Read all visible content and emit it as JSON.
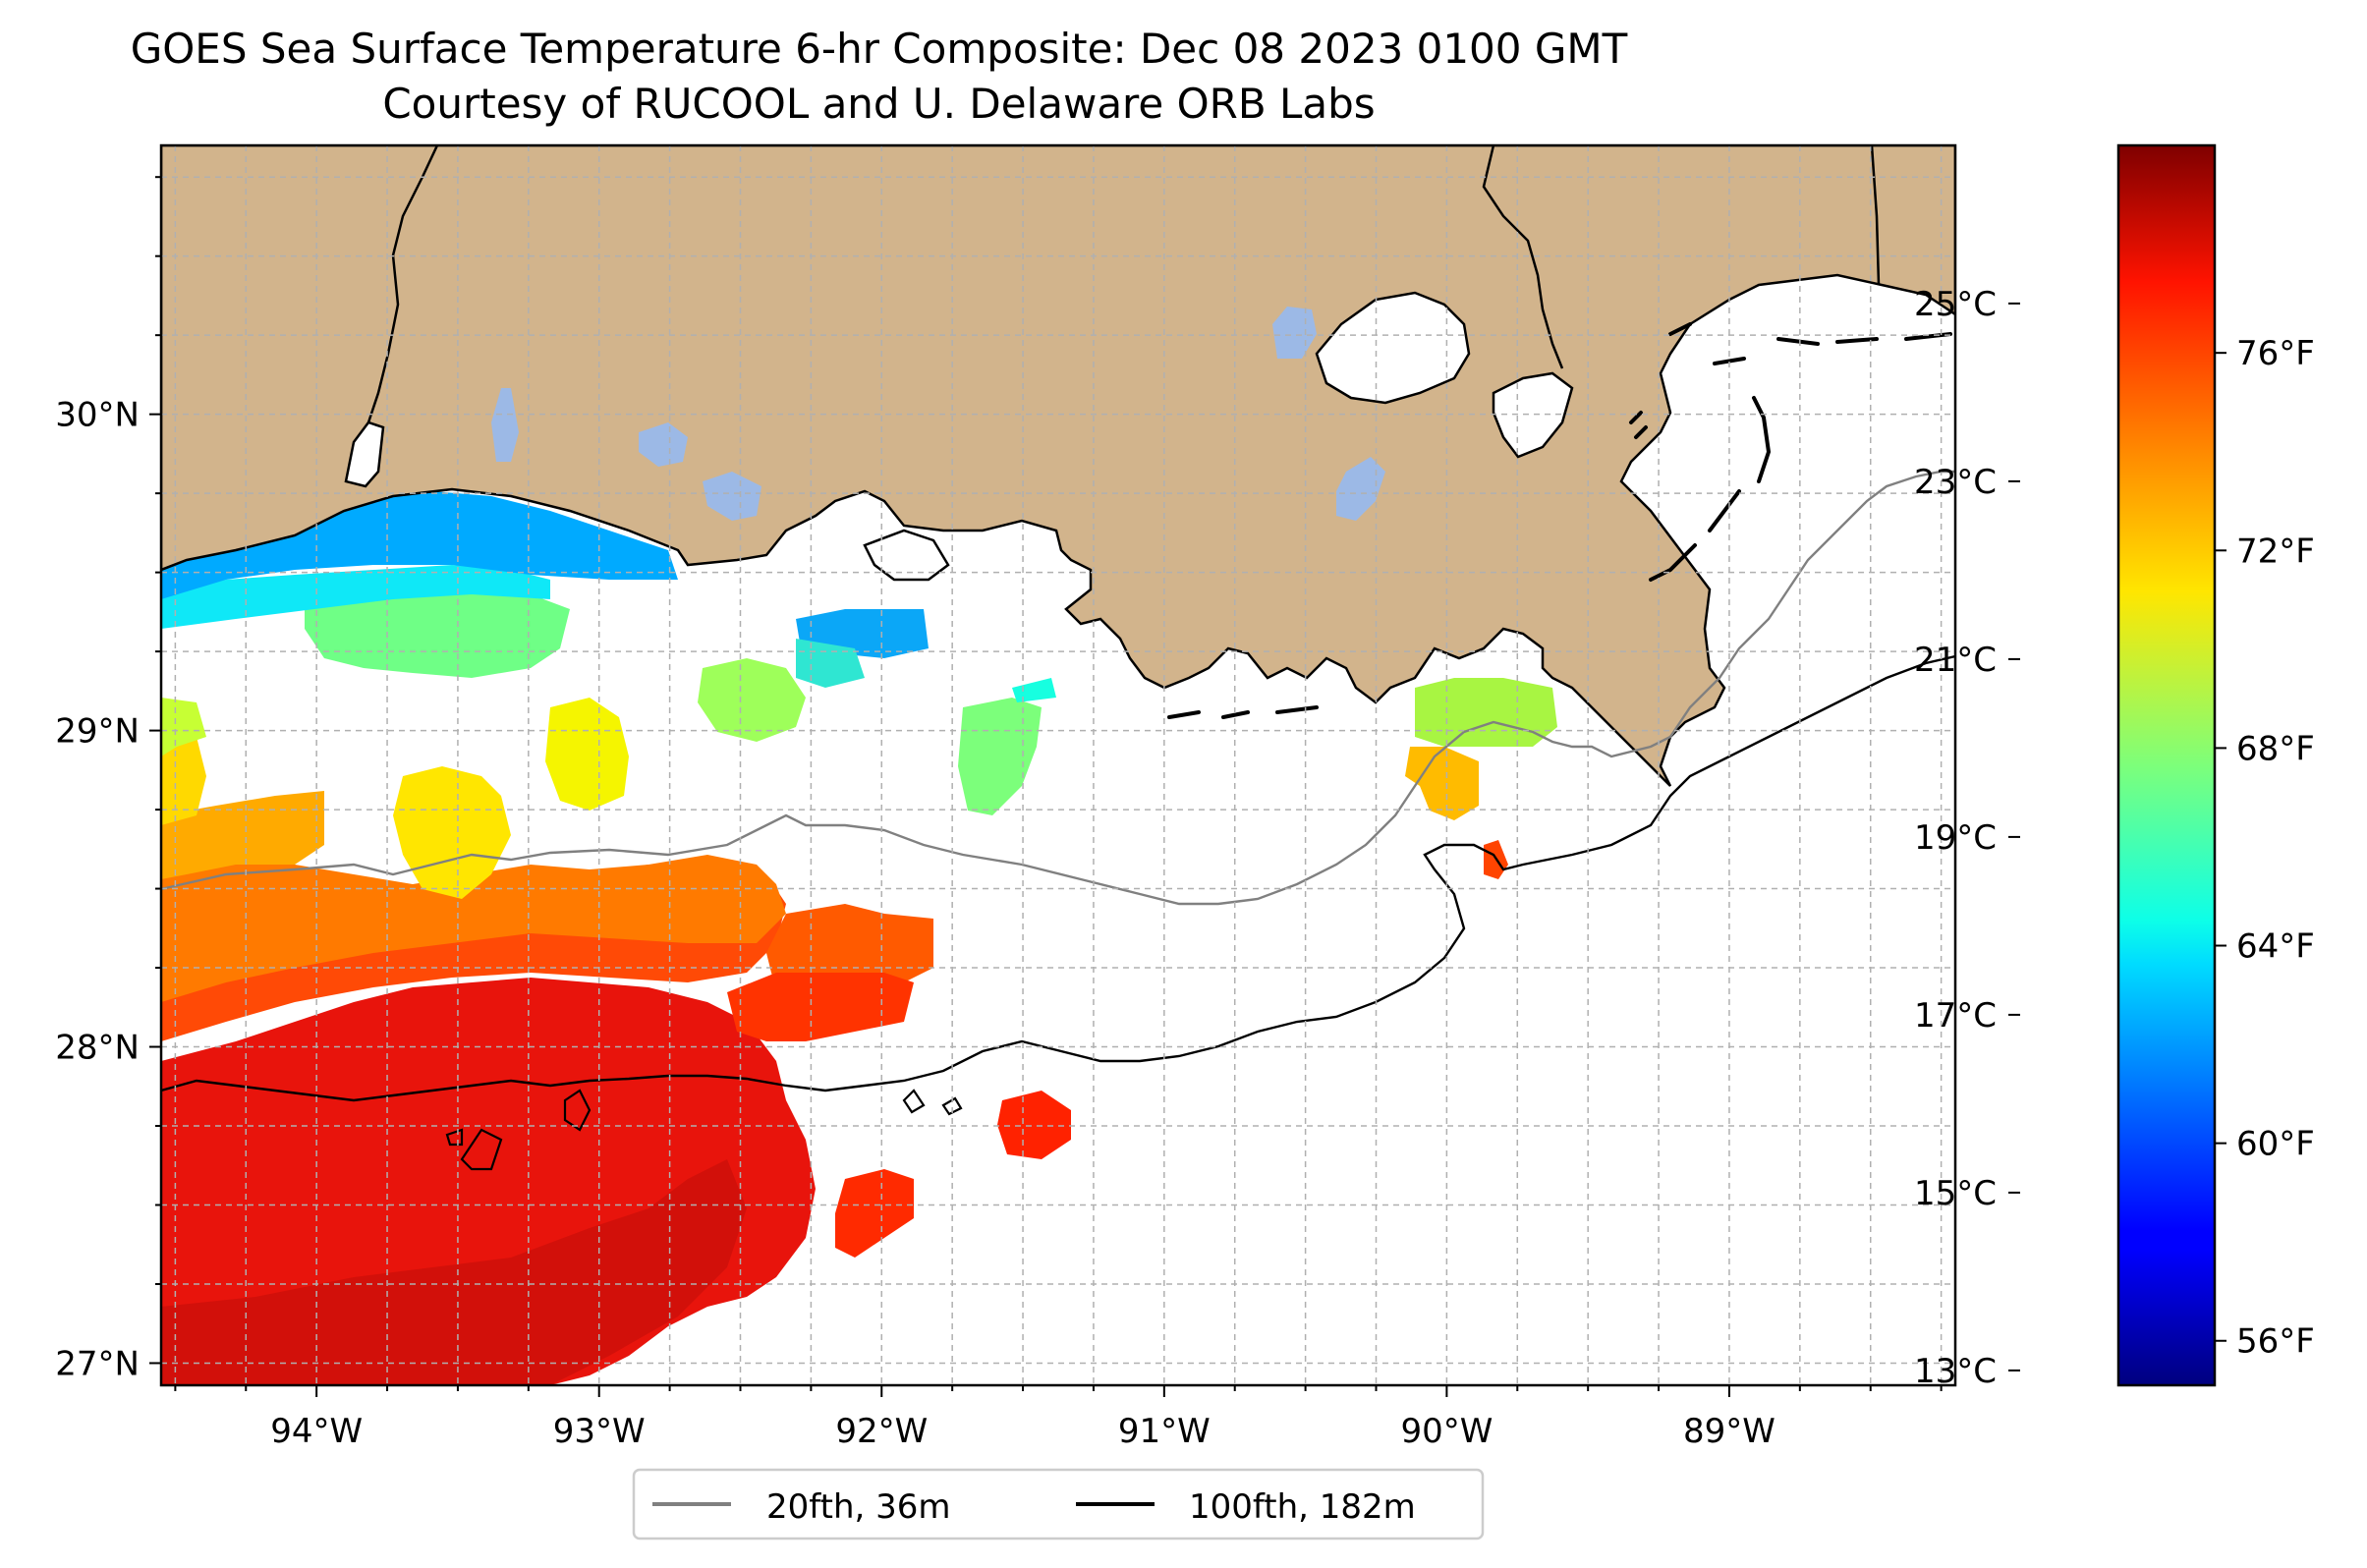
{
  "title_line1": "GOES Sea Surface Temperature 6-hr Composite: Dec 08 2023 0100 GMT",
  "title_line2": "Courtesy of RUCOOL and U. Delaware ORB Labs",
  "map": {
    "lon_range": [
      -94.55,
      -88.2
    ],
    "lat_range": [
      26.93,
      30.85
    ],
    "lon_ticks": [
      {
        "value": -94,
        "label": "94°W"
      },
      {
        "value": -93,
        "label": "93°W"
      },
      {
        "value": -92,
        "label": "92°W"
      },
      {
        "value": -91,
        "label": "91°W"
      },
      {
        "value": -90,
        "label": "90°W"
      },
      {
        "value": -89,
        "label": "89°W"
      }
    ],
    "lat_ticks": [
      {
        "value": 27,
        "label": "27°N"
      },
      {
        "value": 28,
        "label": "28°N"
      },
      {
        "value": 29,
        "label": "29°N"
      },
      {
        "value": 30,
        "label": "30°N"
      }
    ],
    "grid": true,
    "land_color": "#d2b48c",
    "lake_color": "#9cb9e6"
  },
  "colorbar": {
    "colormap": "jet",
    "celsius_ticks": [
      {
        "value": 13,
        "label": "13°C"
      },
      {
        "value": 15,
        "label": "15°C"
      },
      {
        "value": 17,
        "label": "17°C"
      },
      {
        "value": 19,
        "label": "19°C"
      },
      {
        "value": 21,
        "label": "21°C"
      },
      {
        "value": 23,
        "label": "23°C"
      },
      {
        "value": 25,
        "label": "25°C"
      }
    ],
    "fahrenheit_ticks": [
      {
        "value": 56,
        "label": "56°F"
      },
      {
        "value": 60,
        "label": "60°F"
      },
      {
        "value": 64,
        "label": "64°F"
      },
      {
        "value": 68,
        "label": "68°F"
      },
      {
        "value": 72,
        "label": "72°F"
      },
      {
        "value": 76,
        "label": "76°F"
      }
    ],
    "range_f": [
      55.1,
      80.2
    ]
  },
  "legend": {
    "entries": [
      {
        "label": "20fth, 36m",
        "color": "#808080"
      },
      {
        "label": "100fth, 182m",
        "color": "#000000"
      }
    ]
  }
}
